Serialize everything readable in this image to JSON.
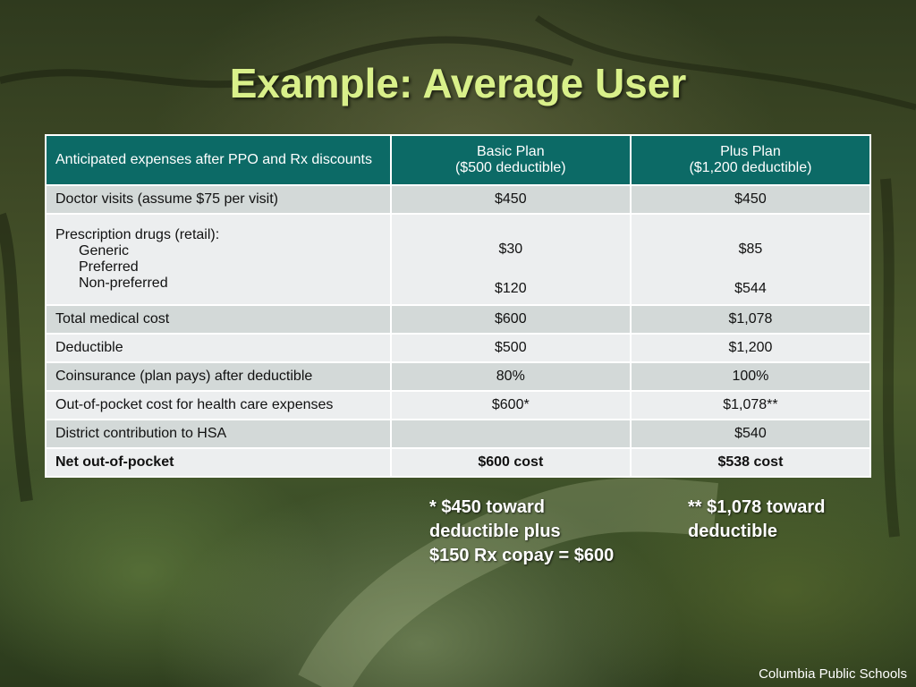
{
  "slide": {
    "title": "Example: Average User",
    "footer": "Columbia Public Schools"
  },
  "table": {
    "headers": {
      "col0": "Anticipated expenses after PPO and Rx discounts",
      "basic_line1": "Basic Plan",
      "basic_line2": "($500 deductible)",
      "plus_line1": "Plus Plan",
      "plus_line2": "($1,200 deductible)"
    },
    "rows": [
      {
        "label": "Doctor visits (assume $75 per visit)",
        "basic": "$450",
        "plus": "$450"
      },
      {
        "label": "Prescription drugs (retail):",
        "sub": [
          "Generic",
          "Preferred",
          "Non-preferred"
        ],
        "basic": [
          "",
          "$30",
          "",
          "$120"
        ],
        "plus": [
          "",
          "$85",
          "",
          "$544"
        ]
      },
      {
        "label": "Total medical cost",
        "basic": "$600",
        "plus": "$1,078"
      },
      {
        "label": "Deductible",
        "basic": "$500",
        "plus": "$1,200"
      },
      {
        "label": "Coinsurance (plan pays) after deductible",
        "basic": "80%",
        "plus": "100%"
      },
      {
        "label": "Out-of-pocket cost for health care expenses",
        "basic": "$600*",
        "plus": "$1,078**"
      },
      {
        "label": "District contribution to HSA",
        "basic": "",
        "plus": "$540"
      },
      {
        "label": "Net out-of-pocket",
        "basic": "$600 cost",
        "plus": "$538 cost"
      }
    ]
  },
  "notes": {
    "basic_note": [
      "* $450 toward",
      "deductible plus",
      "$150 Rx copay = $600"
    ],
    "plus_note": [
      "** $1,078 toward",
      "deductible"
    ]
  }
}
